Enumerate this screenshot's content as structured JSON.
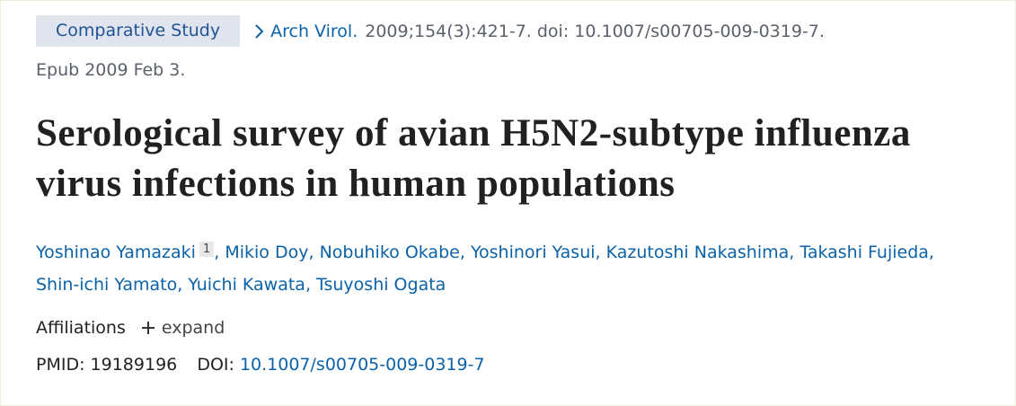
{
  "header": {
    "badge": "Comparative Study",
    "journal": "Arch Virol.",
    "citation": "2009;154(3):421-7. doi: 10.1007/s00705-009-0319-7.",
    "epub": "Epub 2009 Feb 3."
  },
  "title": "Serological survey of avian H5N2-subtype influenza virus infections in human populations",
  "authors": {
    "separator": ",",
    "list": [
      {
        "name": "Yoshinao Yamazaki",
        "affiliation": "1"
      },
      {
        "name": "Mikio Doy"
      },
      {
        "name": "Nobuhiko Okabe"
      },
      {
        "name": "Yoshinori Yasui"
      },
      {
        "name": "Kazutoshi Nakashima"
      },
      {
        "name": "Takashi Fujieda"
      },
      {
        "name": "Shin-ichi Yamato"
      },
      {
        "name": "Yuichi Kawata"
      },
      {
        "name": "Tsuyoshi Ogata"
      }
    ]
  },
  "affiliations": {
    "label": "Affiliations",
    "toggle": "expand"
  },
  "ids": {
    "pmid_label": "PMID:",
    "pmid": "19189196",
    "doi_label": "DOI:",
    "doi": "10.1007/s00705-009-0319-7"
  }
}
